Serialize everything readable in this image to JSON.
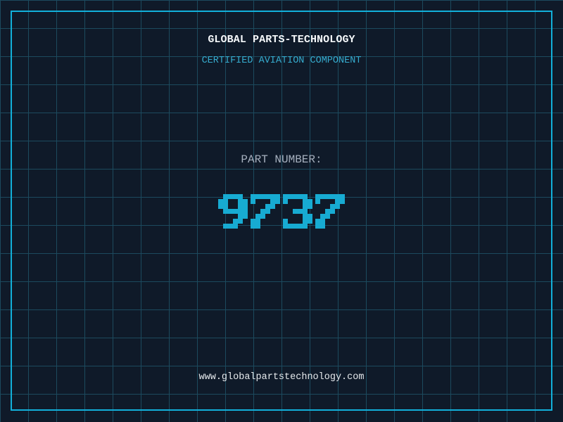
{
  "header": {
    "title": "GLOBAL PARTS-TECHNOLOGY",
    "subtitle": "CERTIFIED AVIATION COMPONENT"
  },
  "part": {
    "label": "PART NUMBER:",
    "number": "9737"
  },
  "footer": {
    "website": "www.globalpartstechnology.com"
  },
  "colors": {
    "background": "#0F1A29",
    "grid_line": "#1C4A5E",
    "frame": "#12B0DA",
    "title": "#F5F8FA",
    "subtitle": "#36ACCF",
    "part_label": "#A6B0BE",
    "part_number": "#17ABD2",
    "footer": "#E6EAED"
  }
}
